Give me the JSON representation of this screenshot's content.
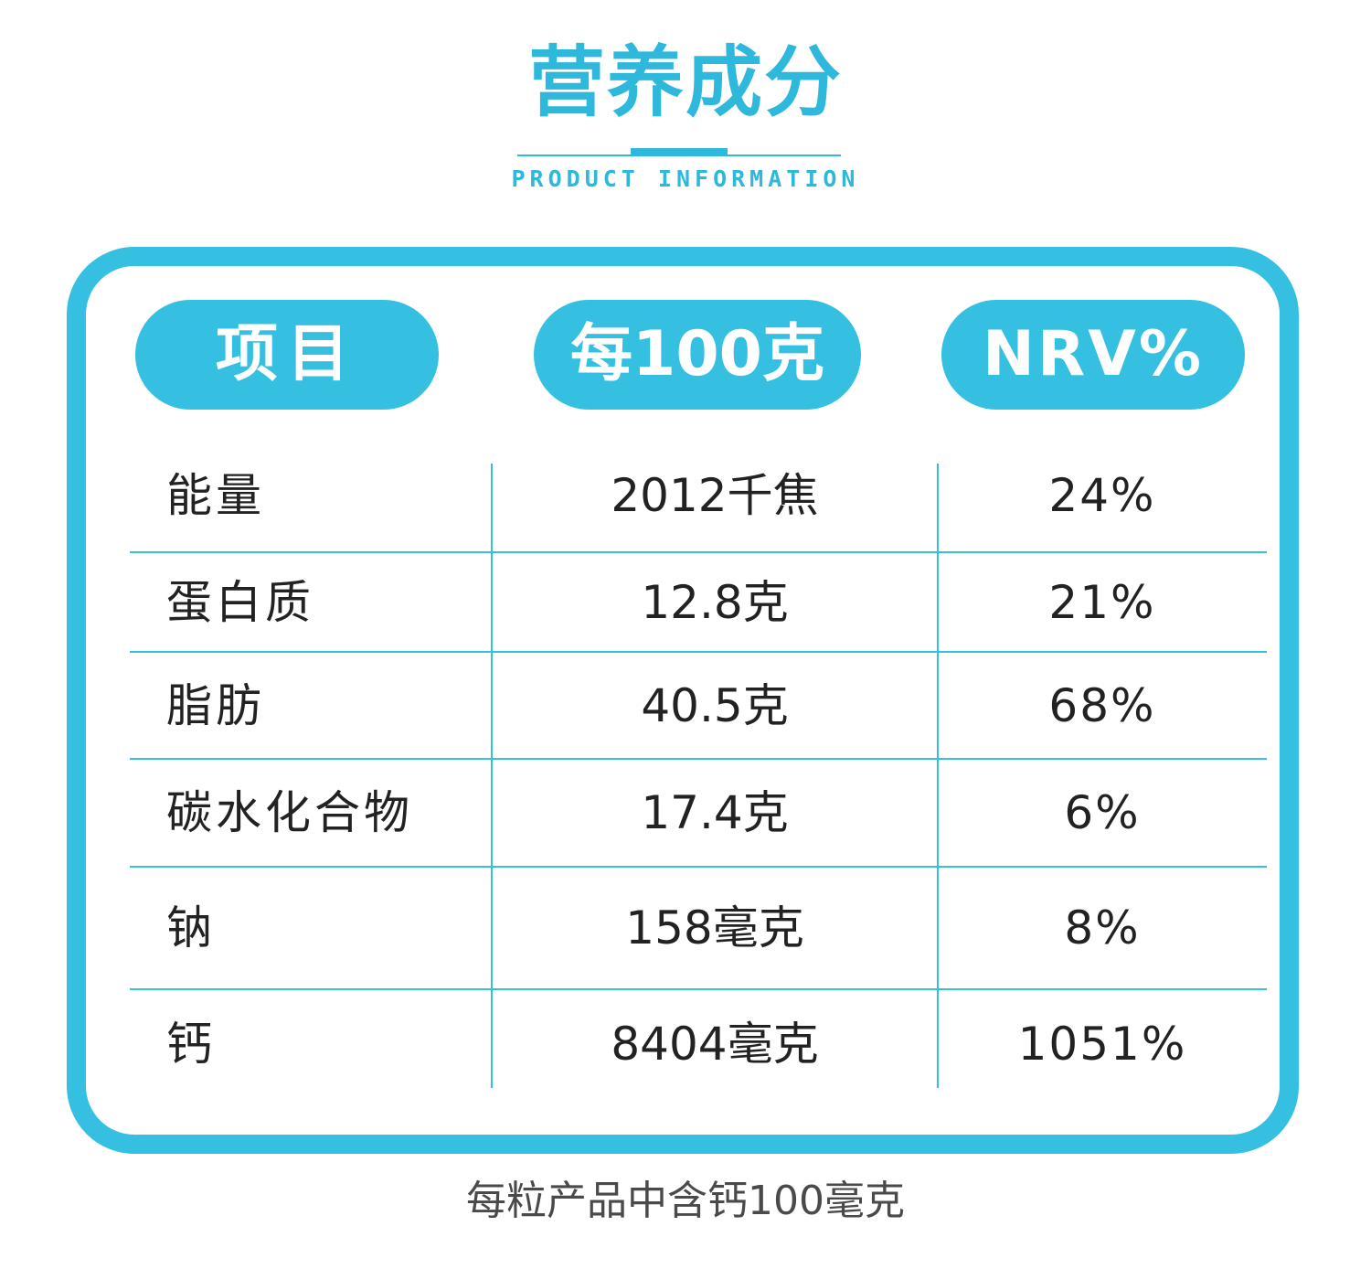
{
  "header": {
    "title": "营养成分",
    "subtitle": "PRODUCT INFORMATION"
  },
  "table": {
    "columns": [
      "项目",
      "每100克",
      "NRV%"
    ],
    "rows": [
      {
        "name": "能量",
        "amount": "2012千焦",
        "nrv": "24%"
      },
      {
        "name": "蛋白质",
        "amount": "12.8克",
        "nrv": "21%"
      },
      {
        "name": "脂肪",
        "amount": "40.5克",
        "nrv": "68%"
      },
      {
        "name": "碳水化合物",
        "amount": "17.4克",
        "nrv": "6%"
      },
      {
        "name": "钠",
        "amount": "158毫克",
        "nrv": "8%"
      },
      {
        "name": "钙",
        "amount": "8404毫克",
        "nrv": "1051%"
      }
    ]
  },
  "footnote": "每粒产品中含钙100毫克",
  "colors": {
    "accent": "#35c0e2",
    "title": "#2eb8dc",
    "text": "#222222",
    "footnote": "#4a4a4a"
  }
}
